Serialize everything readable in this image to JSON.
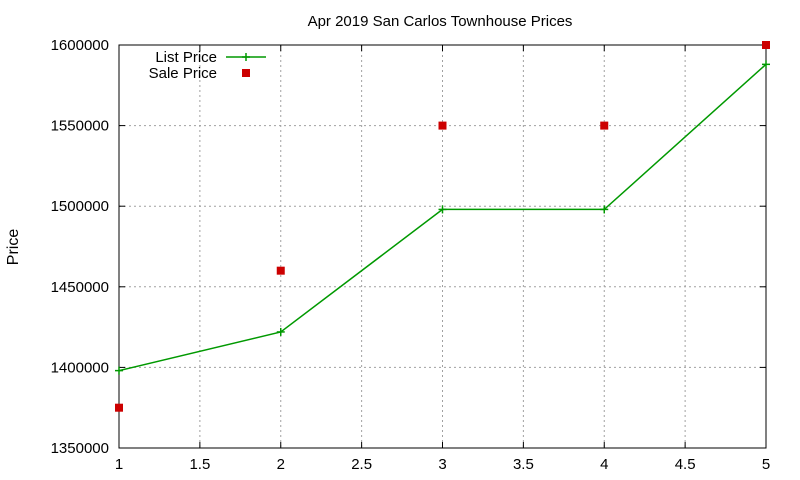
{
  "chart_data": {
    "type": "line",
    "title": "Apr 2019 San Carlos Townhouse Prices",
    "xlabel": "",
    "ylabel": "Price",
    "xlim": [
      1,
      5
    ],
    "ylim": [
      1350000,
      1600000
    ],
    "x_ticks": [
      "1",
      "1.5",
      "2",
      "2.5",
      "3",
      "3.5",
      "4",
      "4.5",
      "5"
    ],
    "y_ticks": [
      "1350000",
      "1400000",
      "1450000",
      "1500000",
      "1550000",
      "1600000"
    ],
    "grid": true,
    "legend_position": "top-left",
    "series": [
      {
        "name": "List Price",
        "style": "linespoints",
        "color": "#009900",
        "marker": "plus",
        "points": [
          [
            1,
            1398000
          ],
          [
            2,
            1422000
          ],
          [
            3,
            1498000
          ],
          [
            4,
            1498000
          ],
          [
            5,
            1588000
          ]
        ]
      },
      {
        "name": "Sale Price",
        "style": "points",
        "color": "#cc0000",
        "marker": "square",
        "points": [
          [
            1,
            1375000
          ],
          [
            2,
            1460000
          ],
          [
            3,
            1550000
          ],
          [
            4,
            1550000
          ],
          [
            5,
            1600000
          ]
        ]
      }
    ]
  }
}
